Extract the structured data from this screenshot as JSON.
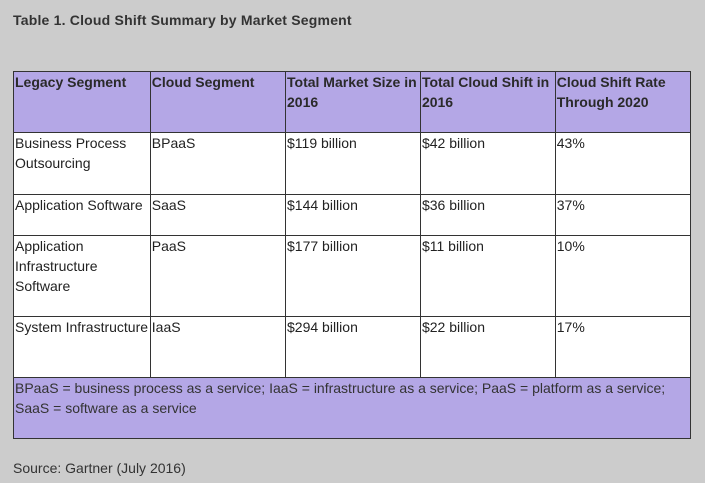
{
  "caption": "Table 1. Cloud Shift Summary by Market Segment",
  "table": {
    "headers": [
      "Legacy Segment",
      "Cloud Segment",
      "Total Market Size in 2016",
      "Total Cloud Shift in 2016",
      "Cloud Shift Rate Through 2020"
    ],
    "rows": [
      [
        "Business Process Outsourcing",
        "BPaaS",
        "$119 billion",
        "$42 billion",
        "43%"
      ],
      [
        "Application Software",
        "SaaS",
        "$144 billion",
        "$36 billion",
        "37%"
      ],
      [
        "Application Infrastructure Software",
        "PaaS",
        "$177 billion",
        "$11 billion",
        "10%"
      ],
      [
        "System Infrastructure",
        "IaaS",
        "$294 billion",
        "$22 billion",
        "17%"
      ]
    ],
    "footnote": "BPaaS = business process as a service; IaaS = infrastructure as a service; PaaS = platform as a service; SaaS = software as a service"
  },
  "source": "Source: Gartner (July 2016)",
  "colors": {
    "header_bg": "#b4a7e6",
    "page_bg": "#cccccc"
  }
}
